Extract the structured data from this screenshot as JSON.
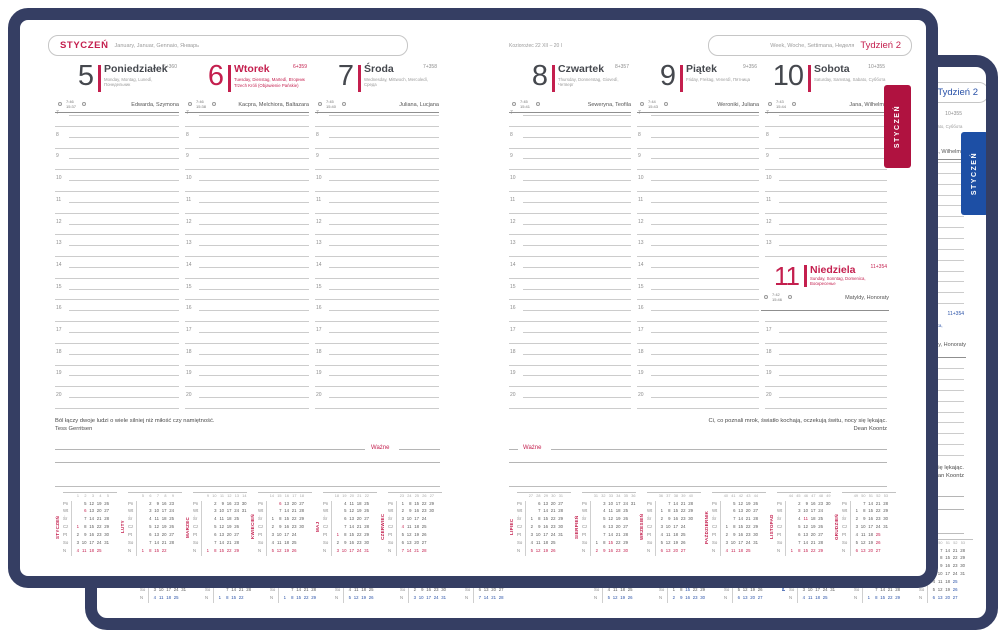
{
  "palette": {
    "frame": "#353e63",
    "page": "#ffffff",
    "front_accent": "#c41f4e",
    "front_tab": "#b01240",
    "back_accent": "#2a52a8",
    "back_tab": "#1d4fa5"
  },
  "month_header": {
    "name": "STYCZEŃ",
    "translations": "January, Januar, Gennaio, Январь"
  },
  "week_header": {
    "translations": "Week, Woche, Settimana, Неделя",
    "label": "Tydzień 2"
  },
  "zodiac": "Koziorożec 22 XII – 20 I",
  "side_tab": "STYCZEŃ",
  "wazne_label": "Ważne",
  "hours": [
    "7",
    "8",
    "9",
    "10",
    "11",
    "12",
    "13",
    "14",
    "15",
    "16",
    "17",
    "18",
    "19",
    "20"
  ],
  "days": [
    {
      "num": "5",
      "name": "Poniedziałek",
      "translations": "Monday, Montag, Lunedì, Понедельник",
      "holiday": "",
      "ordinal": "5+360",
      "sunrise": "7:46",
      "sunset": "15:37",
      "namedays": "Edwarda, Szymona",
      "is_red": false
    },
    {
      "num": "6",
      "name": "Wtorek",
      "translations": "Tuesday, Dienstag, Martedì, Вторник",
      "holiday": "Trzech Króli (Objawienie Pańskie)",
      "ordinal": "6+359",
      "sunrise": "7:46",
      "sunset": "15:38",
      "namedays": "Kacpra, Melchiora, Baltazara",
      "is_red": true
    },
    {
      "num": "7",
      "name": "Środa",
      "translations": "Wednesday, Mittwoch, Mercoledì, Среда",
      "holiday": "",
      "ordinal": "7+358",
      "sunrise": "7:45",
      "sunset": "15:40",
      "namedays": "Juliana, Lucjana",
      "is_red": false
    },
    {
      "num": "8",
      "name": "Czwartek",
      "translations": "Thursday, Donnerstag, Giovedì, Четверг",
      "holiday": "",
      "ordinal": "8+357",
      "sunrise": "7:45",
      "sunset": "15:41",
      "namedays": "Seweryna, Teofila",
      "is_red": false
    },
    {
      "num": "9",
      "name": "Piątek",
      "translations": "Friday, Freitag, Venerdì, Пятница",
      "holiday": "",
      "ordinal": "9+356",
      "sunrise": "7:44",
      "sunset": "15:43",
      "namedays": "Weroniki, Juliana",
      "is_red": false
    },
    {
      "num": "10",
      "name": "Sobota",
      "translations": "Saturday, Samstag, Sabato, Суббота",
      "holiday": "",
      "ordinal": "10+355",
      "sunrise": "7:43",
      "sunset": "15:44",
      "namedays": "Jana, Wilhelma",
      "is_red": false
    },
    {
      "num": "11",
      "name": "Niedziela",
      "translations": "Sunday, Sonntag, Domenica, Воскресенье",
      "holiday": "",
      "ordinal": "11+354",
      "sunrise": "7:42",
      "sunset": "15:46",
      "namedays": "Matyldy, Honoraty",
      "is_red": true
    }
  ],
  "quotes": {
    "left": {
      "text": "Ból łączy dwoje ludzi o wiele silniej niż miłość czy namiętność.",
      "author": "Tess Gerritsen"
    },
    "right": {
      "text": "Ci, co poznali mrok, światło kochają, oczekują świtu, nocy się lękając.",
      "author": "Dean Koontz"
    }
  },
  "mini_calendars": {
    "day_labels": [
      "Pn",
      "Wt",
      "Śr",
      "Cz",
      "Pt",
      "So",
      "N"
    ],
    "left": [
      {
        "name": "STYCZEŃ",
        "weeks": [
          "1",
          "2",
          "3",
          "4",
          "5"
        ],
        "holidays": [
          "1",
          "6"
        ],
        "rows": [
          [
            "",
            "5",
            "12",
            "19",
            "26"
          ],
          [
            "",
            "6",
            "13",
            "20",
            "27"
          ],
          [
            "",
            "7",
            "14",
            "21",
            "28"
          ],
          [
            "1",
            "8",
            "15",
            "22",
            "29"
          ],
          [
            "2",
            "9",
            "16",
            "23",
            "30"
          ],
          [
            "3",
            "10",
            "17",
            "24",
            "31"
          ],
          [
            "4",
            "11",
            "18",
            "25",
            ""
          ]
        ]
      },
      {
        "name": "LUTY",
        "weeks": [
          "5",
          "6",
          "7",
          "8",
          "9"
        ],
        "holidays": [],
        "rows": [
          [
            "",
            "2",
            "9",
            "16",
            "23"
          ],
          [
            "",
            "3",
            "10",
            "17",
            "24"
          ],
          [
            "",
            "4",
            "11",
            "18",
            "25"
          ],
          [
            "",
            "5",
            "12",
            "19",
            "26"
          ],
          [
            "",
            "6",
            "13",
            "20",
            "27"
          ],
          [
            "",
            "7",
            "14",
            "21",
            "28"
          ],
          [
            "1",
            "8",
            "15",
            "22",
            ""
          ]
        ]
      },
      {
        "name": "MARZEC",
        "weeks": [
          "9",
          "10",
          "11",
          "12",
          "13",
          "14"
        ],
        "holidays": [],
        "rows": [
          [
            "",
            "2",
            "9",
            "16",
            "23",
            "30"
          ],
          [
            "",
            "3",
            "10",
            "17",
            "24",
            "31"
          ],
          [
            "",
            "4",
            "11",
            "18",
            "25",
            ""
          ],
          [
            "",
            "5",
            "12",
            "19",
            "26",
            ""
          ],
          [
            "",
            "6",
            "13",
            "20",
            "27",
            ""
          ],
          [
            "",
            "7",
            "14",
            "21",
            "28",
            ""
          ],
          [
            "1",
            "8",
            "15",
            "22",
            "29",
            ""
          ]
        ]
      },
      {
        "name": "KWIECIEŃ",
        "weeks": [
          "14",
          "15",
          "16",
          "17",
          "18"
        ],
        "holidays": [
          "6"
        ],
        "rows": [
          [
            "",
            "6",
            "13",
            "20",
            "27"
          ],
          [
            "",
            "7",
            "14",
            "21",
            "28"
          ],
          [
            "1",
            "8",
            "15",
            "22",
            "29"
          ],
          [
            "2",
            "9",
            "16",
            "23",
            "30"
          ],
          [
            "3",
            "10",
            "17",
            "24",
            ""
          ],
          [
            "4",
            "11",
            "18",
            "25",
            ""
          ],
          [
            "5",
            "12",
            "19",
            "26",
            ""
          ]
        ]
      },
      {
        "name": "MAJ",
        "weeks": [
          "18",
          "19",
          "20",
          "21",
          "22"
        ],
        "holidays": [
          "1",
          "3"
        ],
        "rows": [
          [
            "",
            "4",
            "11",
            "18",
            "25"
          ],
          [
            "",
            "5",
            "12",
            "19",
            "26"
          ],
          [
            "",
            "6",
            "13",
            "20",
            "27"
          ],
          [
            "",
            "7",
            "14",
            "21",
            "28"
          ],
          [
            "1",
            "8",
            "15",
            "22",
            "29"
          ],
          [
            "2",
            "9",
            "16",
            "23",
            "30"
          ],
          [
            "3",
            "10",
            "17",
            "24",
            "31"
          ]
        ]
      },
      {
        "name": "CZERWIEC",
        "weeks": [
          "23",
          "24",
          "25",
          "26",
          "27"
        ],
        "holidays": [
          "4"
        ],
        "rows": [
          [
            "1",
            "8",
            "15",
            "22",
            "29"
          ],
          [
            "2",
            "9",
            "16",
            "23",
            "30"
          ],
          [
            "3",
            "10",
            "17",
            "24",
            ""
          ],
          [
            "4",
            "11",
            "18",
            "25",
            ""
          ],
          [
            "5",
            "12",
            "19",
            "26",
            ""
          ],
          [
            "6",
            "13",
            "20",
            "27",
            ""
          ],
          [
            "7",
            "14",
            "21",
            "28",
            ""
          ]
        ]
      }
    ],
    "right": [
      {
        "name": "LIPIEC",
        "weeks": [
          "27",
          "28",
          "29",
          "30",
          "31"
        ],
        "holidays": [],
        "rows": [
          [
            "",
            "6",
            "13",
            "20",
            "27"
          ],
          [
            "",
            "7",
            "14",
            "21",
            "28"
          ],
          [
            "1",
            "8",
            "15",
            "22",
            "29"
          ],
          [
            "2",
            "9",
            "16",
            "23",
            "30"
          ],
          [
            "3",
            "10",
            "17",
            "24",
            "31"
          ],
          [
            "4",
            "11",
            "18",
            "25",
            ""
          ],
          [
            "5",
            "12",
            "19",
            "26",
            ""
          ]
        ]
      },
      {
        "name": "SIERPIEŃ",
        "weeks": [
          "31",
          "32",
          "33",
          "34",
          "35",
          "36"
        ],
        "holidays": [
          "15"
        ],
        "rows": [
          [
            "",
            "3",
            "10",
            "17",
            "24",
            "31"
          ],
          [
            "",
            "4",
            "11",
            "18",
            "25",
            ""
          ],
          [
            "",
            "5",
            "12",
            "19",
            "26",
            ""
          ],
          [
            "",
            "6",
            "13",
            "20",
            "27",
            ""
          ],
          [
            "",
            "7",
            "14",
            "21",
            "28",
            ""
          ],
          [
            "1",
            "8",
            "15",
            "22",
            "29",
            ""
          ],
          [
            "2",
            "9",
            "16",
            "23",
            "30",
            ""
          ]
        ]
      },
      {
        "name": "WRZESIEŃ",
        "weeks": [
          "36",
          "37",
          "38",
          "39",
          "40"
        ],
        "holidays": [],
        "rows": [
          [
            "",
            "7",
            "14",
            "21",
            "28"
          ],
          [
            "1",
            "8",
            "15",
            "22",
            "29"
          ],
          [
            "2",
            "9",
            "16",
            "23",
            "30"
          ],
          [
            "3",
            "10",
            "17",
            "24",
            ""
          ],
          [
            "4",
            "11",
            "18",
            "25",
            ""
          ],
          [
            "5",
            "12",
            "19",
            "26",
            ""
          ],
          [
            "6",
            "13",
            "20",
            "27",
            ""
          ]
        ]
      },
      {
        "name": "PAŹDZIERNIK",
        "weeks": [
          "40",
          "41",
          "42",
          "43",
          "44"
        ],
        "holidays": [],
        "rows": [
          [
            "",
            "5",
            "12",
            "19",
            "26"
          ],
          [
            "",
            "6",
            "13",
            "20",
            "27"
          ],
          [
            "",
            "7",
            "14",
            "21",
            "28"
          ],
          [
            "1",
            "8",
            "15",
            "22",
            "29"
          ],
          [
            "2",
            "9",
            "16",
            "23",
            "30"
          ],
          [
            "3",
            "10",
            "17",
            "24",
            "31"
          ],
          [
            "4",
            "11",
            "18",
            "25",
            ""
          ]
        ]
      },
      {
        "name": "LISTOPAD",
        "weeks": [
          "44",
          "45",
          "46",
          "47",
          "48",
          "49"
        ],
        "holidays": [
          "11"
        ],
        "rows": [
          [
            "",
            "2",
            "9",
            "16",
            "23",
            "30"
          ],
          [
            "",
            "3",
            "10",
            "17",
            "24",
            ""
          ],
          [
            "",
            "4",
            "11",
            "18",
            "25",
            ""
          ],
          [
            "",
            "5",
            "12",
            "19",
            "26",
            ""
          ],
          [
            "",
            "6",
            "13",
            "20",
            "27",
            ""
          ],
          [
            "",
            "7",
            "14",
            "21",
            "28",
            ""
          ],
          [
            "1",
            "8",
            "15",
            "22",
            "29",
            ""
          ]
        ]
      },
      {
        "name": "GRUDZIEŃ",
        "weeks": [
          "49",
          "50",
          "51",
          "52",
          "53"
        ],
        "holidays": [
          "25",
          "26"
        ],
        "rows": [
          [
            "",
            "7",
            "14",
            "21",
            "28"
          ],
          [
            "1",
            "8",
            "15",
            "22",
            "29"
          ],
          [
            "2",
            "9",
            "16",
            "23",
            "30"
          ],
          [
            "3",
            "10",
            "17",
            "24",
            "31"
          ],
          [
            "4",
            "11",
            "18",
            "25",
            ""
          ],
          [
            "5",
            "12",
            "19",
            "26",
            ""
          ],
          [
            "6",
            "13",
            "20",
            "27",
            ""
          ]
        ]
      }
    ]
  }
}
